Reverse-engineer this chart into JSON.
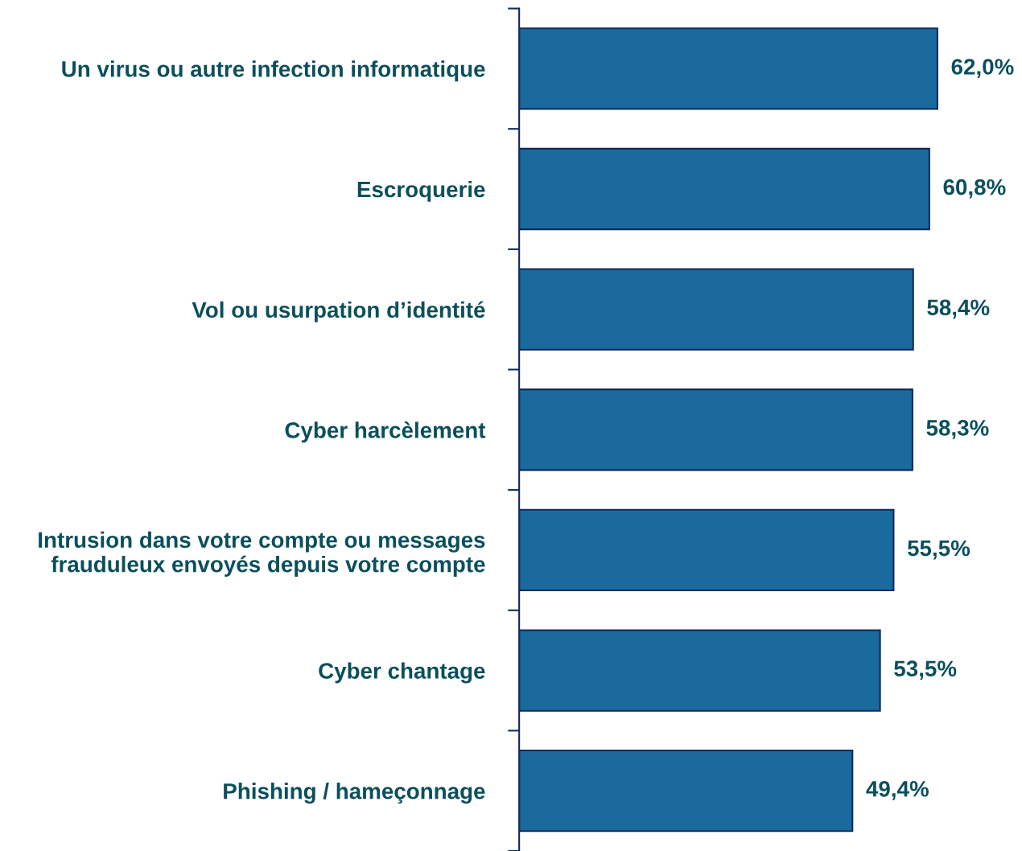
{
  "chart_data": {
    "type": "bar",
    "orientation": "horizontal",
    "categories": [
      "Un virus ou autre infection informatique",
      "Escroquerie",
      "Vol ou usurpation d’identité",
      "Cyber harcèlement",
      "Intrusion dans votre compte ou messages\nfrauduleux envoyés depuis votre compte",
      "Cyber chantage",
      "Phishing / hameçonnage"
    ],
    "values": [
      62.0,
      60.8,
      58.4,
      58.3,
      55.5,
      53.5,
      49.4
    ],
    "value_labels": [
      "62,0%",
      "60,8%",
      "58,4%",
      "58,3%",
      "55,5%",
      "53,5%",
      "49,4%"
    ],
    "color": "#1b6a9e",
    "tick_labels": "y",
    "grid": false,
    "legend": false
  }
}
